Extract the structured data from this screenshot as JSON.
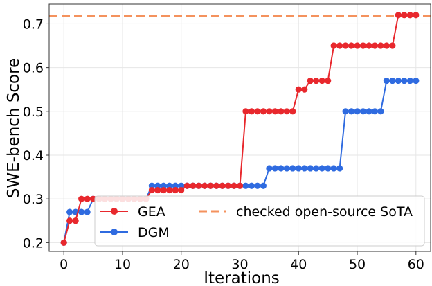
{
  "chart_data": {
    "type": "line",
    "title": "",
    "xlabel": "Iterations",
    "ylabel": "SWE-bench Score",
    "xlim": [
      -2.5,
      62.5
    ],
    "ylim": [
      0.18,
      0.745
    ],
    "xticks": [
      0,
      10,
      20,
      30,
      40,
      50,
      60
    ],
    "yticks": [
      0.2,
      0.3,
      0.4,
      0.5,
      0.6,
      0.7
    ],
    "xtick_labels": [
      "0",
      "10",
      "20",
      "30",
      "40",
      "50",
      "60"
    ],
    "ytick_labels": [
      "0.2",
      "0.3",
      "0.4",
      "0.5",
      "0.6",
      "0.7"
    ],
    "grid": true,
    "legend_position": "lower-right",
    "x": [
      0,
      1,
      2,
      3,
      4,
      5,
      6,
      7,
      8,
      9,
      10,
      11,
      12,
      13,
      14,
      15,
      16,
      17,
      18,
      19,
      20,
      21,
      22,
      23,
      24,
      25,
      26,
      27,
      28,
      29,
      30,
      31,
      32,
      33,
      34,
      35,
      36,
      37,
      38,
      39,
      40,
      41,
      42,
      43,
      44,
      45,
      46,
      47,
      48,
      49,
      50,
      51,
      52,
      53,
      54,
      55,
      56,
      57,
      58,
      59,
      60
    ],
    "series": [
      {
        "name": "GEA",
        "color": "#e8282d",
        "values": [
          0.2,
          0.25,
          0.25,
          0.3,
          0.3,
          0.3,
          0.3,
          0.3,
          0.3,
          0.3,
          0.3,
          0.3,
          0.3,
          0.3,
          0.3,
          0.32,
          0.32,
          0.32,
          0.32,
          0.32,
          0.32,
          0.33,
          0.33,
          0.33,
          0.33,
          0.33,
          0.33,
          0.33,
          0.33,
          0.33,
          0.33,
          0.5,
          0.5,
          0.5,
          0.5,
          0.5,
          0.5,
          0.5,
          0.5,
          0.5,
          0.55,
          0.55,
          0.57,
          0.57,
          0.57,
          0.57,
          0.65,
          0.65,
          0.65,
          0.65,
          0.65,
          0.65,
          0.65,
          0.65,
          0.65,
          0.65,
          0.65,
          0.72,
          0.72,
          0.72,
          0.72
        ]
      },
      {
        "name": "DGM",
        "color": "#2f6be0",
        "values": [
          0.2,
          0.27,
          0.27,
          0.27,
          0.27,
          0.3,
          0.3,
          0.3,
          0.3,
          0.3,
          0.3,
          0.3,
          0.3,
          0.3,
          0.3,
          0.33,
          0.33,
          0.33,
          0.33,
          0.33,
          0.33,
          0.33,
          0.33,
          0.33,
          0.33,
          0.33,
          0.33,
          0.33,
          0.33,
          0.33,
          0.33,
          0.33,
          0.33,
          0.33,
          0.33,
          0.37,
          0.37,
          0.37,
          0.37,
          0.37,
          0.37,
          0.37,
          0.37,
          0.37,
          0.37,
          0.37,
          0.37,
          0.37,
          0.5,
          0.5,
          0.5,
          0.5,
          0.5,
          0.5,
          0.5,
          0.57,
          0.57,
          0.57,
          0.57,
          0.57,
          0.57
        ]
      }
    ],
    "reference_line": {
      "name": "checked open-source SoTA",
      "value": 0.718,
      "color": "#f4925d",
      "style": "dashed"
    }
  }
}
